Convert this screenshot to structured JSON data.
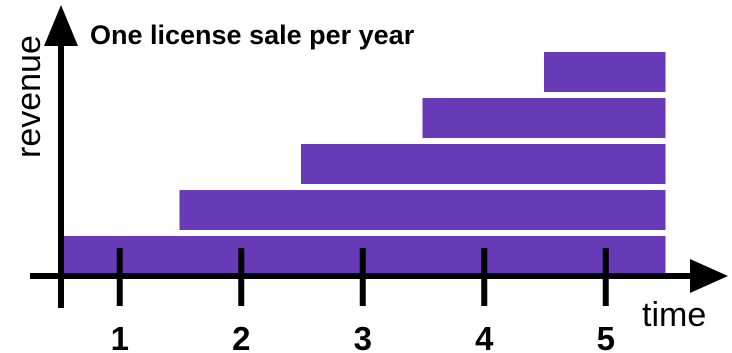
{
  "chart_data": {
    "type": "bar",
    "title": "One license sale per year",
    "xlabel": "time",
    "ylabel": "revenue",
    "ticks": [
      "1",
      "2",
      "3",
      "4",
      "5"
    ],
    "bar_color": "#673AB7",
    "series": [
      {
        "start": 0.5,
        "end": 5.5
      },
      {
        "start": 1.5,
        "end": 5.5
      },
      {
        "start": 2.5,
        "end": 5.5
      },
      {
        "start": 3.5,
        "end": 5.5
      },
      {
        "start": 4.5,
        "end": 5.5
      }
    ],
    "xlim": [
      0,
      5.5
    ],
    "ylim": [
      0,
      5
    ],
    "grid": false,
    "legend": "none"
  }
}
